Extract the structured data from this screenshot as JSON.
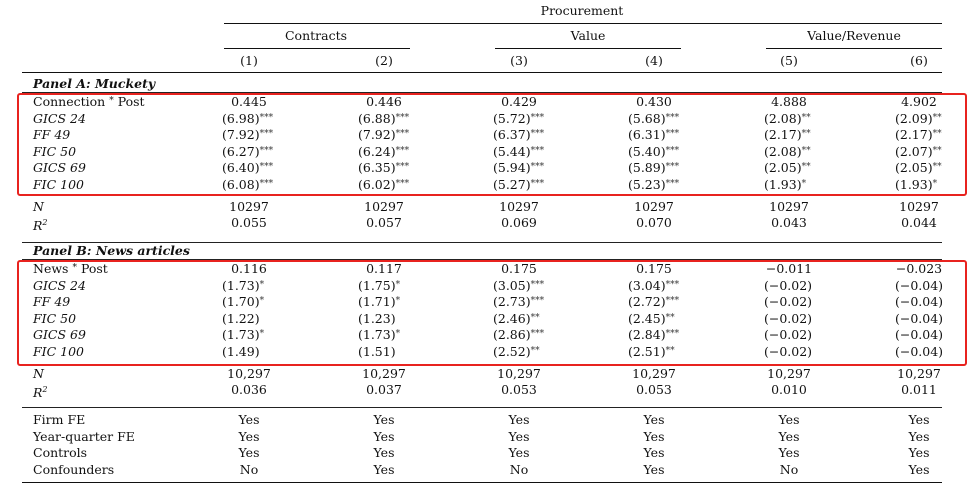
{
  "header": {
    "super": "Procurement",
    "groups": [
      "Contracts",
      "Value",
      "Value/Revenue"
    ],
    "cols": [
      "(1)",
      "(2)",
      "(3)",
      "(4)",
      "(5)",
      "(6)"
    ]
  },
  "panelA": {
    "title": "Panel A: Muckety",
    "main_label": "Connection",
    "main_suffix": "Post",
    "main_values": [
      "0.445",
      "0.446",
      "0.429",
      "0.430",
      "4.888",
      "4.902"
    ],
    "rows": [
      {
        "label": "GICS 24",
        "cells": [
          [
            "(6.98)",
            "***"
          ],
          [
            "(6.88)",
            "***"
          ],
          [
            "(5.72)",
            "***"
          ],
          [
            "(5.68)",
            "***"
          ],
          [
            "(2.08)",
            "**"
          ],
          [
            "(2.09)",
            "**"
          ]
        ]
      },
      {
        "label": "FF 49",
        "cells": [
          [
            "(7.92)",
            "***"
          ],
          [
            "(7.92)",
            "***"
          ],
          [
            "(6.37)",
            "***"
          ],
          [
            "(6.31)",
            "***"
          ],
          [
            "(2.17)",
            "**"
          ],
          [
            "(2.17)",
            "**"
          ]
        ]
      },
      {
        "label": "FIC 50",
        "cells": [
          [
            "(6.27)",
            "***"
          ],
          [
            "(6.24)",
            "***"
          ],
          [
            "(5.44)",
            "***"
          ],
          [
            "(5.40)",
            "***"
          ],
          [
            "(2.08)",
            "**"
          ],
          [
            "(2.07)",
            "**"
          ]
        ]
      },
      {
        "label": "GICS 69",
        "cells": [
          [
            "(6.40)",
            "***"
          ],
          [
            "(6.35)",
            "***"
          ],
          [
            "(5.94)",
            "***"
          ],
          [
            "(5.89)",
            "***"
          ],
          [
            "(2.05)",
            "**"
          ],
          [
            "(2.05)",
            "**"
          ]
        ]
      },
      {
        "label": "FIC 100",
        "cells": [
          [
            "(6.08)",
            "***"
          ],
          [
            "(6.02)",
            "***"
          ],
          [
            "(5.27)",
            "***"
          ],
          [
            "(5.23)",
            "***"
          ],
          [
            "(1.93)",
            "*"
          ],
          [
            "(1.93)",
            "*"
          ]
        ]
      }
    ],
    "n_label": "N",
    "n_values": [
      "10297",
      "10297",
      "10297",
      "10297",
      "10297",
      "10297"
    ],
    "r2_label": "R",
    "r2_sup": "2",
    "r2_values": [
      "0.055",
      "0.057",
      "0.069",
      "0.070",
      "0.043",
      "0.044"
    ]
  },
  "panelB": {
    "title": "Panel B: News articles",
    "main_label": "News",
    "main_suffix": "Post",
    "main_values": [
      "0.116",
      "0.117",
      "0.175",
      "0.175",
      "−0.011",
      "−0.023"
    ],
    "rows": [
      {
        "label": "GICS 24",
        "cells": [
          [
            "(1.73)",
            "*"
          ],
          [
            "(1.75)",
            "*"
          ],
          [
            "(3.05)",
            "***"
          ],
          [
            "(3.04)",
            "***"
          ],
          [
            "(−0.02)",
            ""
          ],
          [
            "(−0.04)",
            ""
          ]
        ]
      },
      {
        "label": "FF 49",
        "cells": [
          [
            "(1.70)",
            "*"
          ],
          [
            "(1.71)",
            "*"
          ],
          [
            "(2.73)",
            "***"
          ],
          [
            "(2.72)",
            "***"
          ],
          [
            "(−0.02)",
            ""
          ],
          [
            "(−0.04)",
            ""
          ]
        ]
      },
      {
        "label": "FIC 50",
        "cells": [
          [
            "(1.22)",
            ""
          ],
          [
            "(1.23)",
            ""
          ],
          [
            "(2.46)",
            "**"
          ],
          [
            "(2.45)",
            "**"
          ],
          [
            "(−0.02)",
            ""
          ],
          [
            "(−0.04)",
            ""
          ]
        ]
      },
      {
        "label": "GICS 69",
        "cells": [
          [
            "(1.73)",
            "*"
          ],
          [
            "(1.73)",
            "*"
          ],
          [
            "(2.86)",
            "***"
          ],
          [
            "(2.84)",
            "***"
          ],
          [
            "(−0.02)",
            ""
          ],
          [
            "(−0.04)",
            ""
          ]
        ]
      },
      {
        "label": "FIC 100",
        "cells": [
          [
            "(1.49)",
            ""
          ],
          [
            "(1.51)",
            ""
          ],
          [
            "(2.52)",
            "**"
          ],
          [
            "(2.51)",
            "**"
          ],
          [
            "(−0.02)",
            ""
          ],
          [
            "(−0.04)",
            ""
          ]
        ]
      }
    ],
    "n_label": "N",
    "n_values": [
      "10,297",
      "10,297",
      "10,297",
      "10,297",
      "10,297",
      "10,297"
    ],
    "r2_label": "R",
    "r2_sup": "2",
    "r2_values": [
      "0.036",
      "0.037",
      "0.053",
      "0.053",
      "0.010",
      "0.011"
    ]
  },
  "fe_rows": [
    {
      "label": "Firm FE",
      "values": [
        "Yes",
        "Yes",
        "Yes",
        "Yes",
        "Yes",
        "Yes"
      ]
    },
    {
      "label": "Year-quarter FE",
      "values": [
        "Yes",
        "Yes",
        "Yes",
        "Yes",
        "Yes",
        "Yes"
      ]
    },
    {
      "label": "Controls",
      "values": [
        "Yes",
        "Yes",
        "Yes",
        "Yes",
        "Yes",
        "Yes"
      ]
    },
    {
      "label": "Confounders",
      "values": [
        "No",
        "Yes",
        "No",
        "Yes",
        "No",
        "Yes"
      ]
    }
  ],
  "highlight_color": "#e8231f"
}
